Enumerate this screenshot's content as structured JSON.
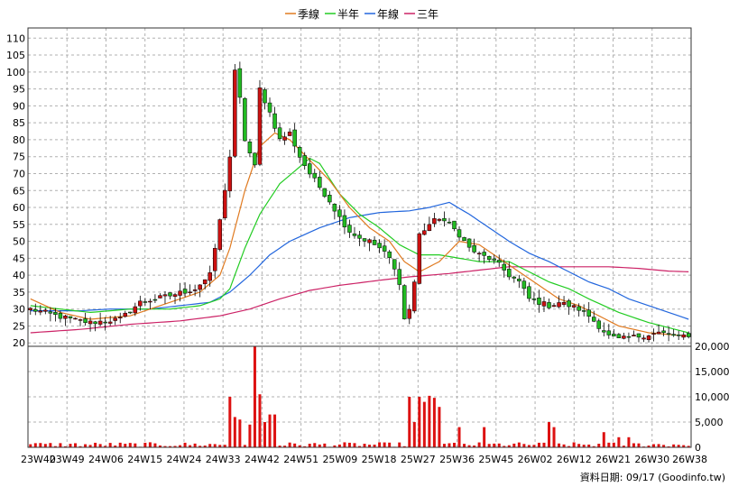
{
  "chart_data": {
    "type": "candlestick",
    "legend": {
      "placement": "top",
      "items": [
        {
          "label": "季線",
          "color": "#e07a20"
        },
        {
          "label": "半年",
          "color": "#22cc22"
        },
        {
          "label": "年線",
          "color": "#2266dd"
        },
        {
          "label": "三年",
          "color": "#cc2266"
        }
      ]
    },
    "grid": true,
    "price_axis": {
      "ylim": [
        19,
        113
      ],
      "ticks": [
        "110",
        "105",
        "100",
        "95",
        "90",
        "85",
        "80",
        "75",
        "70",
        "65",
        "60",
        "55",
        "50",
        "45",
        "40",
        "35",
        "30",
        "25",
        "20"
      ]
    },
    "volume_axis": {
      "ylim": [
        0,
        20000
      ],
      "ticks": [
        "20,000",
        "15,000",
        "10,000",
        "5,000",
        "0"
      ]
    },
    "x_ticks": [
      "23W40",
      "23W49",
      "24W06",
      "24W15",
      "24W24",
      "24W33",
      "24W42",
      "24W51",
      "25W09",
      "25W18",
      "25W27",
      "25W36",
      "25W45",
      "26W02",
      "26W12",
      "26W21",
      "26W30",
      "26W38"
    ],
    "close_anchors": [
      [
        0,
        30
      ],
      [
        8,
        27
      ],
      [
        12,
        26
      ],
      [
        18,
        27
      ],
      [
        22,
        32
      ],
      [
        28,
        34
      ],
      [
        33,
        36
      ],
      [
        36,
        40
      ],
      [
        38,
        56
      ],
      [
        40,
        75
      ],
      [
        41,
        100
      ],
      [
        42,
        92
      ],
      [
        43,
        80
      ],
      [
        45,
        72
      ],
      [
        46,
        95
      ],
      [
        48,
        88
      ],
      [
        50,
        80
      ],
      [
        52,
        82
      ],
      [
        54,
        75
      ],
      [
        56,
        70
      ],
      [
        58,
        66
      ],
      [
        60,
        62
      ],
      [
        62,
        57
      ],
      [
        64,
        53
      ],
      [
        66,
        51
      ],
      [
        68,
        50
      ],
      [
        70,
        48
      ],
      [
        72,
        45
      ],
      [
        74,
        38
      ],
      [
        75,
        27
      ],
      [
        76,
        30
      ],
      [
        77,
        38
      ],
      [
        78,
        52
      ],
      [
        80,
        55
      ],
      [
        82,
        57
      ],
      [
        84,
        55
      ],
      [
        86,
        52
      ],
      [
        88,
        48
      ],
      [
        90,
        46
      ],
      [
        92,
        45
      ],
      [
        94,
        43
      ],
      [
        96,
        40
      ],
      [
        98,
        38
      ],
      [
        100,
        33
      ],
      [
        102,
        32
      ],
      [
        104,
        31
      ],
      [
        106,
        32
      ],
      [
        108,
        31
      ],
      [
        110,
        30
      ],
      [
        112,
        28
      ],
      [
        114,
        25
      ],
      [
        116,
        22
      ],
      [
        118,
        21
      ],
      [
        122,
        22
      ],
      [
        126,
        23
      ],
      [
        130,
        22
      ],
      [
        132,
        21.5
      ]
    ],
    "ma_quarter_anchors": [
      [
        0,
        33
      ],
      [
        6,
        29
      ],
      [
        12,
        27
      ],
      [
        20,
        28
      ],
      [
        28,
        32
      ],
      [
        34,
        35
      ],
      [
        38,
        40
      ],
      [
        40,
        48
      ],
      [
        43,
        65
      ],
      [
        46,
        78
      ],
      [
        49,
        82
      ],
      [
        52,
        80
      ],
      [
        56,
        74
      ],
      [
        60,
        68
      ],
      [
        64,
        60
      ],
      [
        68,
        54
      ],
      [
        72,
        50
      ],
      [
        75,
        44
      ],
      [
        78,
        41
      ],
      [
        82,
        44
      ],
      [
        86,
        50
      ],
      [
        90,
        49
      ],
      [
        94,
        45
      ],
      [
        98,
        41
      ],
      [
        102,
        37
      ],
      [
        106,
        33
      ],
      [
        110,
        31
      ],
      [
        114,
        28
      ],
      [
        118,
        25
      ],
      [
        124,
        23
      ],
      [
        128,
        22.5
      ],
      [
        132,
        22
      ]
    ],
    "ma_half_anchors": [
      [
        0,
        31
      ],
      [
        6,
        30
      ],
      [
        12,
        29
      ],
      [
        20,
        30
      ],
      [
        28,
        30
      ],
      [
        34,
        31
      ],
      [
        38,
        33
      ],
      [
        40,
        36
      ],
      [
        43,
        48
      ],
      [
        46,
        58
      ],
      [
        50,
        67
      ],
      [
        54,
        72
      ],
      [
        56,
        74.5
      ],
      [
        58,
        73
      ],
      [
        62,
        64
      ],
      [
        66,
        58
      ],
      [
        70,
        54
      ],
      [
        74,
        49
      ],
      [
        78,
        46
      ],
      [
        82,
        46
      ],
      [
        86,
        45
      ],
      [
        90,
        44
      ],
      [
        96,
        44
      ],
      [
        100,
        41
      ],
      [
        104,
        38
      ],
      [
        108,
        36
      ],
      [
        112,
        33
      ],
      [
        118,
        29
      ],
      [
        124,
        26
      ],
      [
        128,
        24.5
      ],
      [
        132,
        23
      ]
    ],
    "ma_year_anchors": [
      [
        0,
        29.5
      ],
      [
        10,
        29.5
      ],
      [
        16,
        30
      ],
      [
        24,
        30
      ],
      [
        30,
        31
      ],
      [
        36,
        32
      ],
      [
        40,
        35
      ],
      [
        44,
        40
      ],
      [
        48,
        46
      ],
      [
        52,
        50
      ],
      [
        58,
        54
      ],
      [
        64,
        57
      ],
      [
        70,
        58.5
      ],
      [
        76,
        59
      ],
      [
        80,
        60
      ],
      [
        84,
        61.5
      ],
      [
        88,
        58
      ],
      [
        92,
        54
      ],
      [
        96,
        50
      ],
      [
        100,
        46.5
      ],
      [
        104,
        44
      ],
      [
        108,
        41
      ],
      [
        112,
        38
      ],
      [
        116,
        36
      ],
      [
        120,
        33
      ],
      [
        124,
        31
      ],
      [
        128,
        29
      ],
      [
        132,
        27
      ]
    ],
    "ma_3year_anchors": [
      [
        0,
        23
      ],
      [
        10,
        24
      ],
      [
        20,
        25.5
      ],
      [
        30,
        26.5
      ],
      [
        38,
        28
      ],
      [
        44,
        30
      ],
      [
        50,
        33
      ],
      [
        56,
        35.5
      ],
      [
        62,
        37
      ],
      [
        70,
        38.5
      ],
      [
        76,
        39.5
      ],
      [
        84,
        40.5
      ],
      [
        90,
        41.5
      ],
      [
        96,
        42.5
      ],
      [
        104,
        42.5
      ],
      [
        110,
        42.5
      ],
      [
        116,
        42.5
      ],
      [
        122,
        42
      ],
      [
        128,
        41.2
      ],
      [
        132,
        41
      ]
    ],
    "volume_spikes": [
      [
        40,
        10000
      ],
      [
        41,
        6000
      ],
      [
        42,
        5500
      ],
      [
        44,
        4500
      ],
      [
        45,
        20000
      ],
      [
        46,
        10500
      ],
      [
        47,
        5000
      ],
      [
        48,
        6500
      ],
      [
        49,
        6500
      ],
      [
        76,
        10000
      ],
      [
        77,
        5000
      ],
      [
        78,
        10000
      ],
      [
        79,
        9000
      ],
      [
        80,
        10200
      ],
      [
        81,
        9800
      ],
      [
        82,
        8000
      ],
      [
        86,
        4000
      ],
      [
        91,
        4000
      ],
      [
        104,
        5000
      ],
      [
        105,
        4000
      ],
      [
        115,
        3000
      ],
      [
        118,
        2000
      ],
      [
        120,
        2000
      ]
    ]
  },
  "footer": {
    "credit": "資料日期: 09/17 (Goodinfo.tw)"
  },
  "colors": {
    "up": "#cc1111",
    "down": "#22bb22",
    "volume": "#dd1111",
    "grid": "#b0b0b0",
    "frame": "#333333"
  }
}
